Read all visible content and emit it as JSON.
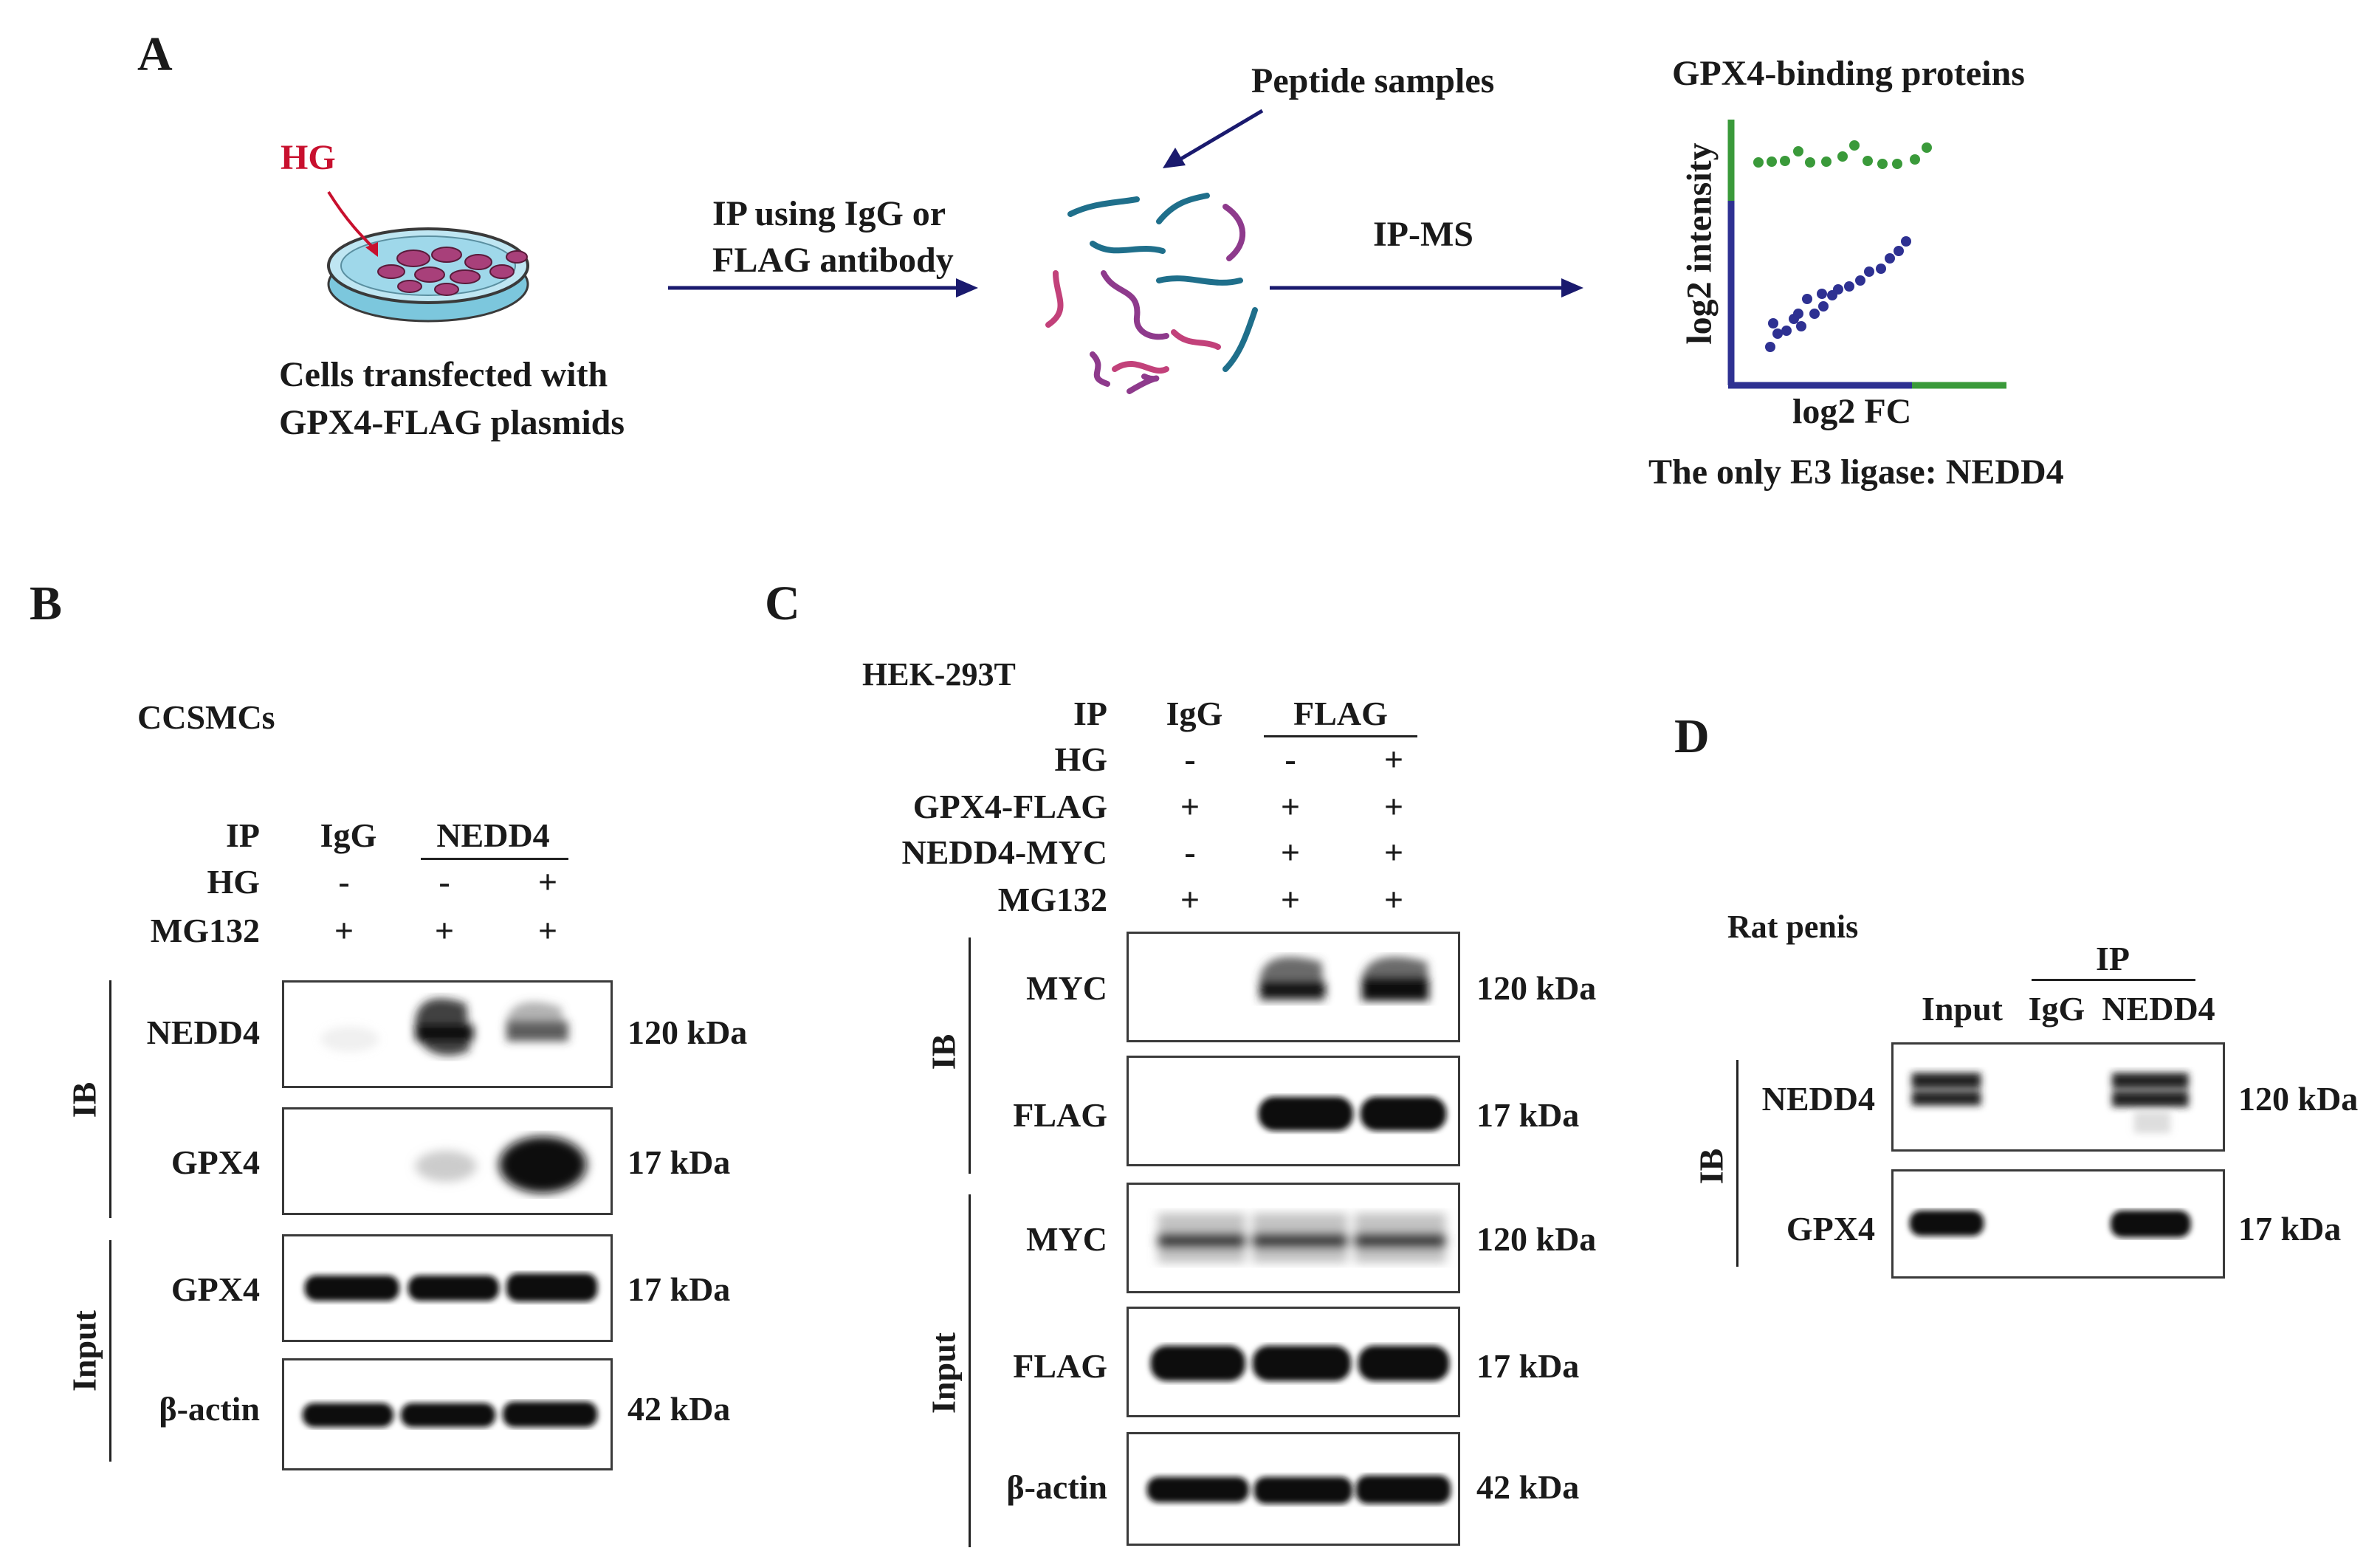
{
  "colors": {
    "arrow": "#1a1a6e",
    "hg_red": "#c8102e",
    "green": "#3a9a3a",
    "navy": "#2e3192",
    "band": "#111111"
  },
  "panelA": {
    "letter": "A",
    "hg": "HG",
    "cells_line1": "Cells transfected with",
    "cells_line2": "GPX4-FLAG plasmids",
    "ip_line1": "IP using IgG or",
    "ip_line2": "FLAG antibody",
    "peptide": "Peptide samples",
    "ipms": "IP-MS",
    "plot_title": "GPX4-binding proteins",
    "ylabel": "log2 intensity",
    "xlabel": "log2 FC",
    "conclusion": "The only E3 ligase: NEDD4"
  },
  "panelB": {
    "letter": "B",
    "cell": "CCSMCs",
    "row_labels": [
      "IP",
      "HG",
      "MG132"
    ],
    "ip_igg": "IgG",
    "ip_nedd4": "NEDD4",
    "hg_signs": [
      "-",
      "-",
      "+"
    ],
    "mg_signs": [
      "+",
      "+",
      "+"
    ],
    "ib": "IB",
    "input": "Input",
    "blots": [
      {
        "label": "NEDD4",
        "kda": "120 kDa"
      },
      {
        "label": "GPX4",
        "kda": "17 kDa"
      },
      {
        "label": "GPX4",
        "kda": "17 kDa"
      },
      {
        "label": "β-actin",
        "kda": "42 kDa"
      }
    ]
  },
  "panelC": {
    "letter": "C",
    "cell": "HEK-293T",
    "row_labels": [
      "IP",
      "HG",
      "GPX4-FLAG",
      "NEDD4-MYC",
      "MG132"
    ],
    "ip_igg": "IgG",
    "ip_flag": "FLAG",
    "hg_signs": [
      "-",
      "-",
      "+"
    ],
    "gpx4_signs": [
      "+",
      "+",
      "+"
    ],
    "nedd4_signs": [
      "-",
      "+",
      "+"
    ],
    "mg_signs": [
      "+",
      "+",
      "+"
    ],
    "ib": "IB",
    "input": "Input",
    "blots": [
      {
        "label": "MYC",
        "kda": "120 kDa"
      },
      {
        "label": "FLAG",
        "kda": "17 kDa"
      },
      {
        "label": "MYC",
        "kda": "120 kDa"
      },
      {
        "label": "FLAG",
        "kda": "17 kDa"
      },
      {
        "label": "β-actin",
        "kda": "42 kDa"
      }
    ]
  },
  "panelD": {
    "letter": "D",
    "tissue": "Rat penis",
    "ip": "IP",
    "lanes": [
      "Input",
      "IgG",
      "NEDD4"
    ],
    "ib": "IB",
    "blots": [
      {
        "label": "NEDD4",
        "kda": "120 kDa"
      },
      {
        "label": "GPX4",
        "kda": "17 kDa"
      }
    ]
  }
}
